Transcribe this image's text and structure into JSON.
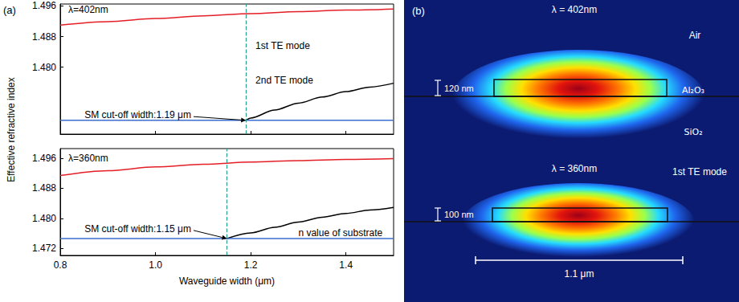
{
  "chart_data": [
    {
      "type": "line",
      "panel_label": "(a)",
      "ylabel": "Effective refractive index",
      "xlim": [
        0.8,
        1.5
      ],
      "xticks": [
        0.8,
        {
          "value": 1,
          "label": "1.0"
        },
        1.2,
        1.4
      ],
      "ylim": [
        1.4625,
        1.4965
      ],
      "yticks": [
        {
          "value": 1.48,
          "label": "1.480"
        },
        1.488,
        1.496
      ],
      "tick_labels": "y",
      "grid": false,
      "cutoff_width": 1.19,
      "series": [
        {
          "color": "#e41f26",
          "x": [
            0.8,
            0.9,
            1.0,
            1.1,
            1.2,
            1.3,
            1.4,
            1.5
          ],
          "values": [
            1.491,
            1.4919,
            1.4927,
            1.4934,
            1.494,
            1.4945,
            1.4949,
            1.4952
          ]
        },
        {
          "color": "#000000",
          "x": [
            1.19,
            1.2,
            1.25,
            1.3,
            1.35,
            1.4,
            1.45,
            1.5
          ],
          "values": [
            1.4661,
            1.4667,
            1.4688,
            1.4706,
            1.4722,
            1.4736,
            1.4748,
            1.4758
          ]
        },
        {
          "color": "#3a6fd0",
          "x": [
            0.8,
            1.5
          ],
          "values": [
            1.4661,
            1.4661
          ]
        }
      ],
      "annotations": [
        {
          "text": "λ=402nm",
          "x": 0.817,
          "y": 1.495
        },
        {
          "text": "1st TE mode",
          "x": 1.21,
          "y": 1.4855
        },
        {
          "text": "2nd TE mode",
          "x": 1.21,
          "y": 1.4765
        },
        {
          "text": "SM cut-off width:1.19 μm",
          "x": 0.851,
          "y": 1.4675,
          "arrow_to": [
            1.19,
            1.4661
          ]
        }
      ]
    },
    {
      "type": "line",
      "xlabel": "Waveguide width (μm)",
      "xlim": [
        0.8,
        1.5
      ],
      "xticks": [
        0.8,
        {
          "value": 1,
          "label": "1.0"
        },
        1.2,
        1.4
      ],
      "ylim": [
        1.4701,
        1.4986
      ],
      "yticks": [
        {
          "value": 1.472,
          "label": "1.472"
        },
        {
          "value": 1.48,
          "label": "1.480"
        },
        1.488,
        1.496
      ],
      "tick_labels": true,
      "grid": false,
      "cutoff_width": 1.15,
      "series": [
        {
          "color": "#e41f26",
          "x": [
            0.8,
            0.9,
            1.0,
            1.1,
            1.2,
            1.3,
            1.4,
            1.5
          ],
          "values": [
            1.4914,
            1.4927,
            1.4937,
            1.4944,
            1.495,
            1.4954,
            1.4957,
            1.4959
          ]
        },
        {
          "color": "#000000",
          "x": [
            1.15,
            1.2,
            1.25,
            1.3,
            1.35,
            1.4,
            1.45,
            1.5
          ],
          "values": [
            1.4746,
            1.4761,
            1.4776,
            1.479,
            1.4803,
            1.4813,
            1.4822,
            1.4829
          ]
        },
        {
          "color": "#3a6fd0",
          "x": [
            0.8,
            1.5
          ],
          "values": [
            1.4746,
            1.4746
          ]
        }
      ],
      "annotations": [
        {
          "text": "λ=360nm",
          "x": 0.817,
          "y": 1.496
        },
        {
          "text": "SM cut-off width:1.15 μm",
          "x": 0.851,
          "y": 1.4772,
          "arrow_to": [
            1.15,
            1.4746
          ]
        },
        {
          "text": "n value of substrate",
          "x": 1.3,
          "y": 1.4762
        }
      ]
    }
  ],
  "panel_b": {
    "label": "(b)",
    "top": {
      "wavelength": "λ = 402nm",
      "cladding": "Air",
      "core": "Al₂O₃",
      "substrate": "SiO₂",
      "thickness": "120 nm"
    },
    "bottom": {
      "wavelength": "λ = 360nm",
      "mode": "1st TE mode",
      "thickness": "100 nm",
      "scale_bar": "1.1 μm"
    }
  }
}
